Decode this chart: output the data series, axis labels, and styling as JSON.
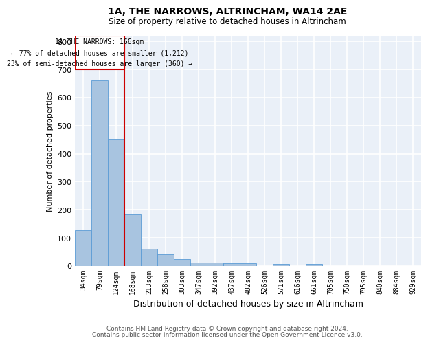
{
  "title1": "1A, THE NARROWS, ALTRINCHAM, WA14 2AE",
  "title2": "Size of property relative to detached houses in Altrincham",
  "xlabel": "Distribution of detached houses by size in Altrincham",
  "ylabel": "Number of detached properties",
  "footer1": "Contains HM Land Registry data © Crown copyright and database right 2024.",
  "footer2": "Contains public sector information licensed under the Open Government Licence v3.0.",
  "categories": [
    "34sqm",
    "79sqm",
    "124sqm",
    "168sqm",
    "213sqm",
    "258sqm",
    "303sqm",
    "347sqm",
    "392sqm",
    "437sqm",
    "482sqm",
    "526sqm",
    "571sqm",
    "616sqm",
    "661sqm",
    "705sqm",
    "750sqm",
    "795sqm",
    "840sqm",
    "884sqm",
    "929sqm"
  ],
  "values": [
    127,
    660,
    452,
    183,
    60,
    42,
    25,
    12,
    13,
    11,
    9,
    0,
    7,
    0,
    8,
    0,
    0,
    0,
    0,
    0,
    0
  ],
  "bar_color": "#a8c4e0",
  "bar_edge_color": "#5b9bd5",
  "bg_color": "#eaf0f8",
  "grid_color": "#ffffff",
  "vline_x": 2.5,
  "vline_label": "1A THE NARROWS: 166sqm",
  "annotation_line1": "← 77% of detached houses are smaller (1,212)",
  "annotation_line2": "23% of semi-detached houses are larger (360) →",
  "box_color": "#cc0000",
  "ylim": [
    0,
    820
  ],
  "yticks": [
    0,
    100,
    200,
    300,
    400,
    500,
    600,
    700,
    800
  ]
}
